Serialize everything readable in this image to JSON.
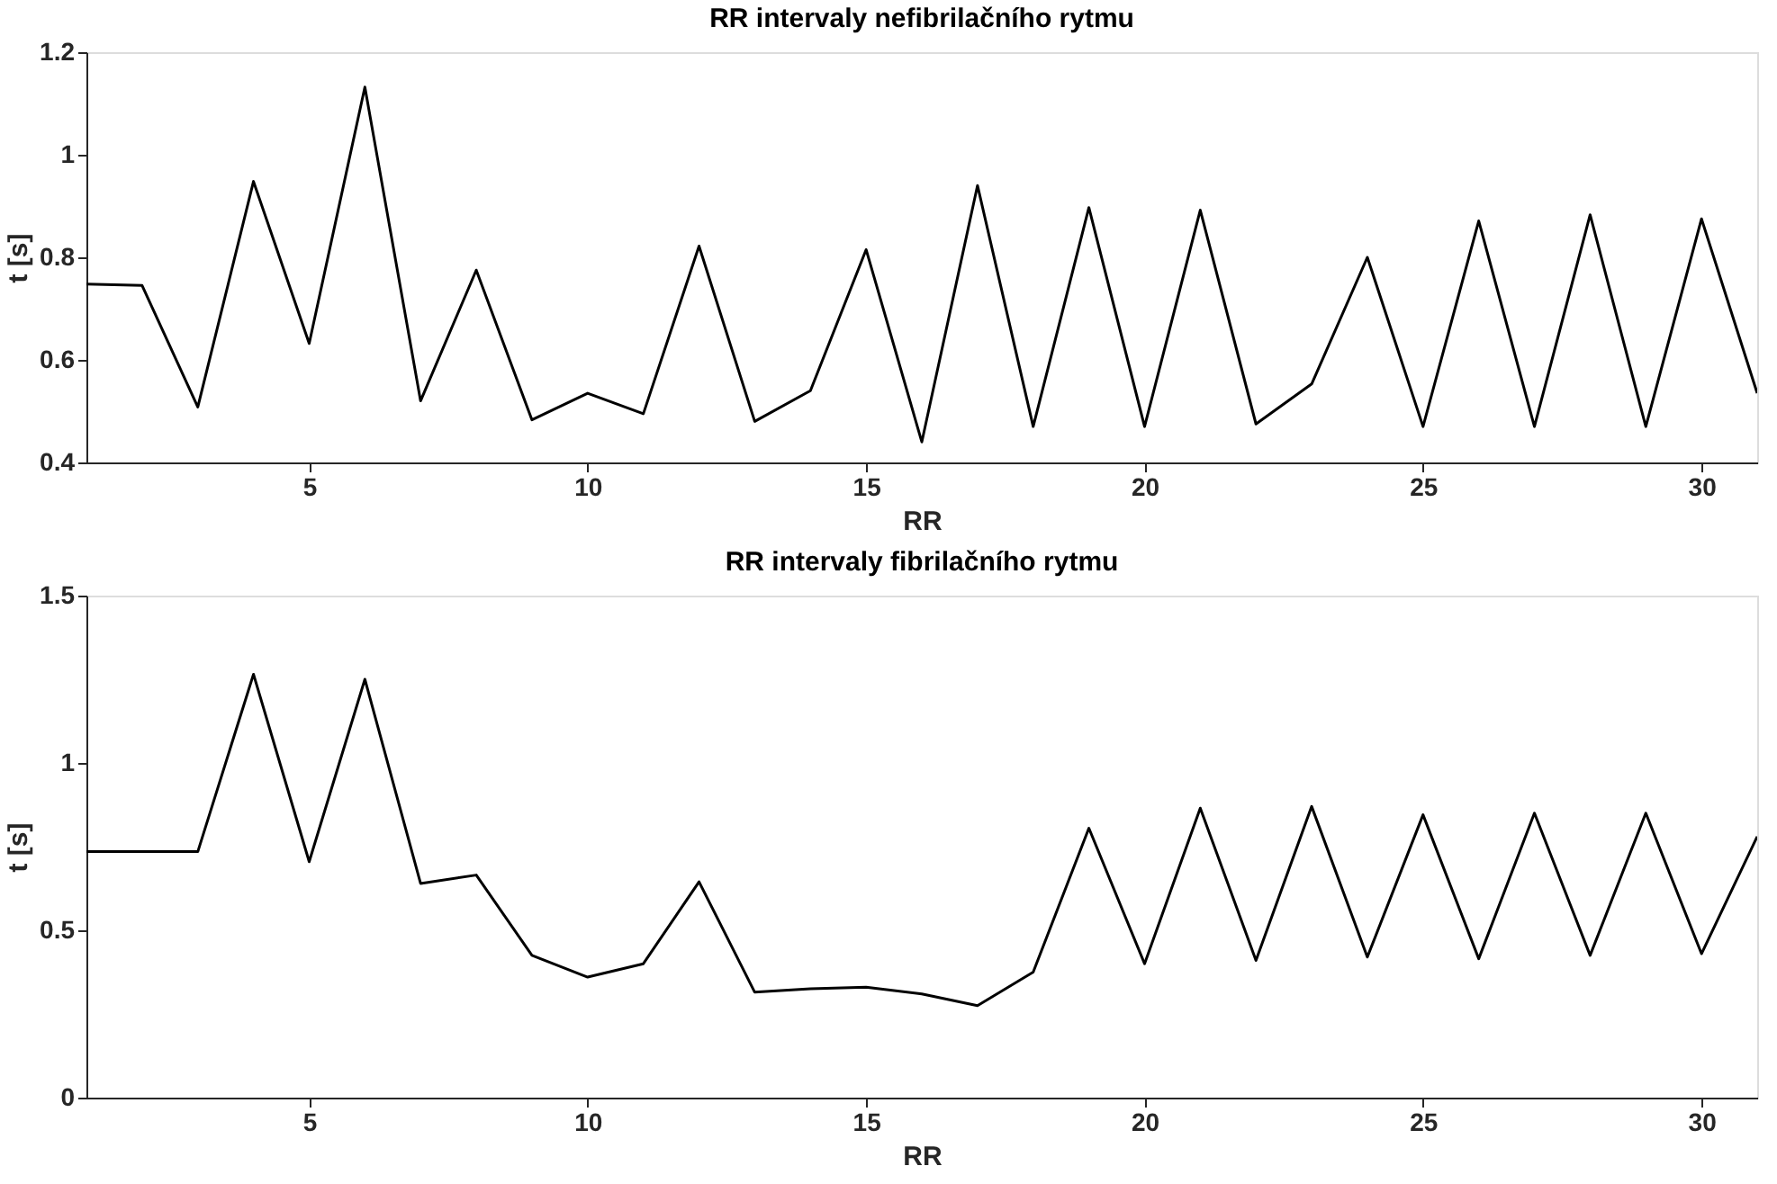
{
  "chart_data": [
    {
      "type": "line",
      "title": "RR intervaly nefibrilačního rytmu",
      "xlabel": "RR",
      "ylabel": "t [s]",
      "x": [
        1,
        2,
        3,
        4,
        5,
        6,
        7,
        8,
        9,
        10,
        11,
        12,
        13,
        14,
        15,
        16,
        17,
        18,
        19,
        20,
        21,
        22,
        23,
        24,
        25,
        26,
        27,
        28,
        29,
        30,
        31
      ],
      "series": [
        {
          "color": "#000000",
          "values": [
            0.748,
            0.745,
            0.508,
            0.948,
            0.632,
            1.132,
            0.52,
            0.775,
            0.483,
            0.535,
            0.495,
            0.822,
            0.48,
            0.54,
            0.815,
            0.44,
            0.94,
            0.47,
            0.897,
            0.47,
            0.892,
            0.475,
            0.553,
            0.8,
            0.47,
            0.871,
            0.47,
            0.883,
            0.47,
            0.875,
            0.535
          ]
        }
      ],
      "xlim": [
        1,
        31
      ],
      "xticks": [
        5,
        10,
        15,
        20,
        25,
        30
      ],
      "ylim": [
        0.4,
        1.2
      ],
      "yticks": [
        0.4,
        0.6,
        0.8,
        1,
        1.2
      ],
      "grid": false,
      "marker": "none",
      "line_style": "solid"
    },
    {
      "type": "line",
      "title": "RR intervaly fibrilačního rytmu",
      "xlabel": "RR",
      "ylabel": "t [s]",
      "x": [
        1,
        2,
        3,
        4,
        5,
        6,
        7,
        8,
        9,
        10,
        11,
        12,
        13,
        14,
        15,
        16,
        17,
        18,
        19,
        20,
        21,
        22,
        23,
        24,
        25,
        26,
        27,
        28,
        29,
        30,
        31
      ],
      "series": [
        {
          "color": "#000000",
          "values": [
            0.735,
            0.735,
            0.735,
            1.265,
            0.705,
            1.25,
            0.64,
            0.665,
            0.425,
            0.36,
            0.4,
            0.645,
            0.315,
            0.325,
            0.33,
            0.31,
            0.275,
            0.375,
            0.805,
            0.4,
            0.865,
            0.41,
            0.87,
            0.42,
            0.845,
            0.415,
            0.85,
            0.425,
            0.85,
            0.43,
            0.78
          ]
        }
      ],
      "xlim": [
        1,
        31
      ],
      "xticks": [
        5,
        10,
        15,
        20,
        25,
        30
      ],
      "ylim": [
        0,
        1.5
      ],
      "yticks": [
        0,
        0.5,
        1,
        1.5
      ],
      "grid": false,
      "marker": "none",
      "line_style": "solid"
    }
  ]
}
